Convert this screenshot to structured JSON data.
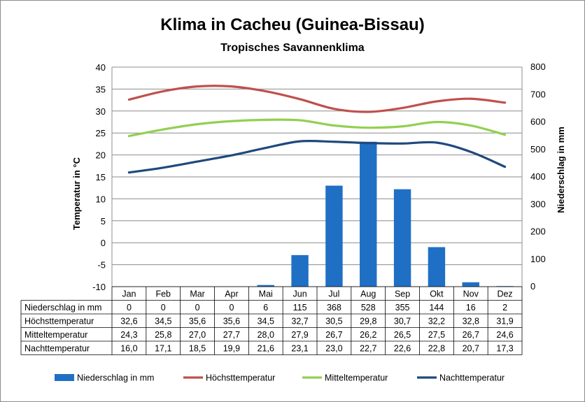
{
  "chart_data": {
    "type": "bar+line",
    "title": "Klima in Cacheu (Guinea-Bissau)",
    "subtitle": "Tropisches Savannenklima",
    "categories": [
      "Jan",
      "Feb",
      "Mar",
      "Apr",
      "Mai",
      "Jun",
      "Jul",
      "Aug",
      "Sep",
      "Okt",
      "Nov",
      "Dez"
    ],
    "ylabel": "Temperatur in °C",
    "y2label": "Niederschlag in mm",
    "ylim": [
      -10,
      40
    ],
    "y2lim": [
      0,
      800
    ],
    "yticks": [
      "40",
      "35",
      "30",
      "25",
      "20",
      "15",
      "10",
      "5",
      "0",
      "-5",
      "-10"
    ],
    "y2ticks": [
      "800",
      "700",
      "600",
      "500",
      "400",
      "300",
      "200",
      "100",
      "0"
    ],
    "grid": true,
    "legend_position": "bottom",
    "series": [
      {
        "name": "Niederschlag in mm",
        "type": "bar",
        "axis": "right",
        "color": "#1f6fc5",
        "values": [
          0,
          0,
          0,
          0,
          6,
          115,
          368,
          528,
          355,
          144,
          16,
          2
        ],
        "labels": [
          "0",
          "0",
          "0",
          "0",
          "6",
          "115",
          "368",
          "528",
          "355",
          "144",
          "16",
          "2"
        ]
      },
      {
        "name": "Höchsttemperatur",
        "type": "line",
        "axis": "left",
        "color": "#c0504d",
        "values": [
          32.6,
          34.5,
          35.6,
          35.6,
          34.5,
          32.7,
          30.5,
          29.8,
          30.7,
          32.2,
          32.8,
          31.9
        ],
        "labels": [
          "32,6",
          "34,5",
          "35,6",
          "35,6",
          "34,5",
          "32,7",
          "30,5",
          "29,8",
          "30,7",
          "32,2",
          "32,8",
          "31,9"
        ]
      },
      {
        "name": "Mitteltemperatur",
        "type": "line",
        "axis": "left",
        "color": "#92d050",
        "values": [
          24.3,
          25.8,
          27.0,
          27.7,
          28.0,
          27.9,
          26.7,
          26.2,
          26.5,
          27.5,
          26.7,
          24.6
        ],
        "labels": [
          "24,3",
          "25,8",
          "27,0",
          "27,7",
          "28,0",
          "27,9",
          "26,7",
          "26,2",
          "26,5",
          "27,5",
          "26,7",
          "24,6"
        ]
      },
      {
        "name": "Nachttemperatur",
        "type": "line",
        "axis": "left",
        "color": "#1f497d",
        "values": [
          16.0,
          17.1,
          18.5,
          19.9,
          21.6,
          23.1,
          23.0,
          22.7,
          22.6,
          22.8,
          20.7,
          17.3
        ],
        "labels": [
          "16,0",
          "17,1",
          "18,5",
          "19,9",
          "21,6",
          "23,1",
          "23,0",
          "22,7",
          "22,6",
          "22,8",
          "20,7",
          "17,3"
        ]
      }
    ]
  }
}
